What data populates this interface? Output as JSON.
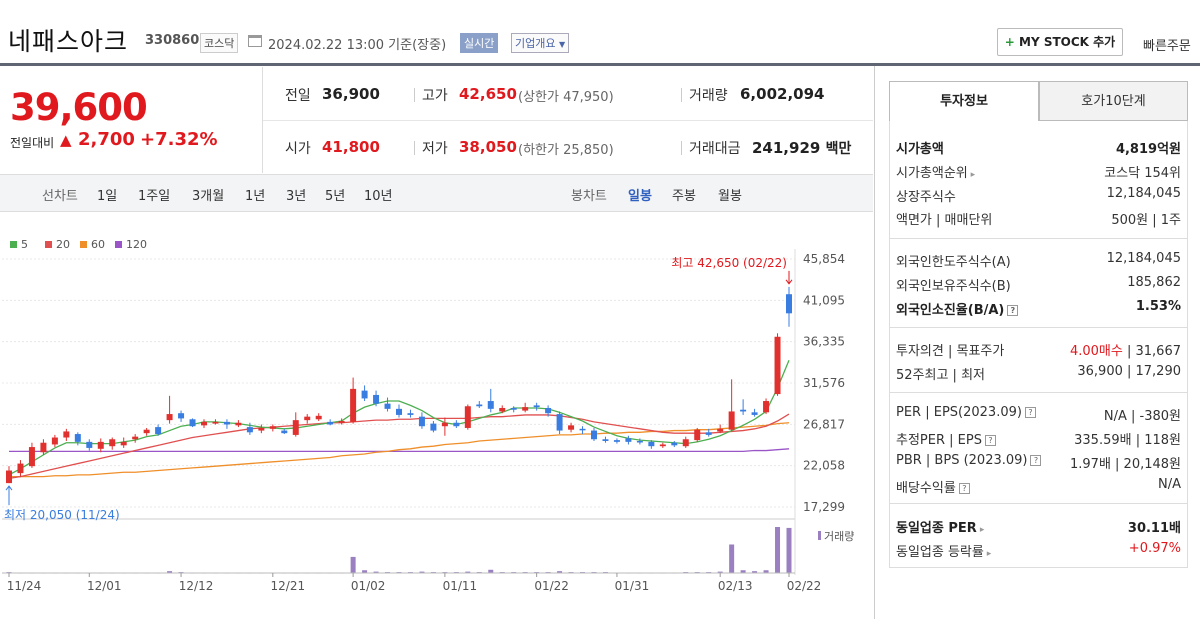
{
  "header": {
    "stock_name": "네패스아크",
    "stock_code": "330860",
    "market": "코스닥",
    "date": "2024.02.22 13:00",
    "date_suffix": "기준(장중)",
    "realtime": "실시간",
    "company_info": "기업개요",
    "my_stock": "MY STOCK 추가",
    "quick_order": "빠른주문"
  },
  "price": {
    "current": "39,600",
    "change_label": "전일대비",
    "change_amount": "2,700",
    "change_percent": "+7.32%",
    "prev_close_label": "전일",
    "prev_close": "36,900",
    "high_label": "고가",
    "high": "42,650",
    "upper_limit_label": "(상한가",
    "upper_limit": "47,950)",
    "volume_label": "거래량",
    "volume": "6,002,094",
    "open_label": "시가",
    "open": "41,800",
    "low_label": "저가",
    "low": "38,050",
    "lower_limit_label": "(하한가",
    "lower_limit": "25,850)",
    "amount_label": "거래대금",
    "amount": "241,929",
    "amount_unit": "백만"
  },
  "period_bar": {
    "candle_label": "선차트",
    "periods": [
      "1일",
      "1주일",
      "3개월",
      "1년",
      "3년",
      "5년",
      "10년"
    ],
    "bar_label": "봉차트",
    "bar_types": [
      "일봉",
      "주봉",
      "월봉"
    ]
  },
  "chart_data": {
    "type": "candlestick",
    "legend": [
      "5",
      "20",
      "60",
      "120"
    ],
    "legend_colors": [
      "#4caf50",
      "#e05050",
      "#ef8f2a",
      "#9a55c8"
    ],
    "y_ticks": [
      "45,854",
      "41,095",
      "36,335",
      "31,576",
      "26,817",
      "22,058",
      "17,299"
    ],
    "y_tick_values": [
      45854,
      41095,
      36335,
      31576,
      26817,
      22058,
      17299
    ],
    "x_ticks": [
      "11/24",
      "12/01",
      "12/12",
      "12/21",
      "01/02",
      "01/11",
      "01/22",
      "01/31",
      "02/13",
      "02/22"
    ],
    "max_annotation": "최고 42,650 (02/22)",
    "min_annotation": "최저 20,050 (11/24)",
    "volume_label": "거래량",
    "candles": [
      {
        "o": 20050,
        "c": 21500,
        "h": 22000,
        "l": 20050
      },
      {
        "o": 21200,
        "c": 22300,
        "h": 22700,
        "l": 20800
      },
      {
        "o": 22000,
        "c": 24200,
        "h": 24700,
        "l": 21800
      },
      {
        "o": 23600,
        "c": 24700,
        "h": 25100,
        "l": 23300
      },
      {
        "o": 24500,
        "c": 25300,
        "h": 25600,
        "l": 24200
      },
      {
        "o": 25300,
        "c": 26000,
        "h": 26300,
        "l": 24900
      },
      {
        "o": 25700,
        "c": 24800,
        "h": 25900,
        "l": 24400
      },
      {
        "o": 24800,
        "c": 24100,
        "h": 25100,
        "l": 23800
      },
      {
        "o": 24000,
        "c": 24800,
        "h": 25200,
        "l": 23600
      },
      {
        "o": 24300,
        "c": 25100,
        "h": 25300,
        "l": 23900
      },
      {
        "o": 24400,
        "c": 24800,
        "h": 25300,
        "l": 24100
      },
      {
        "o": 25100,
        "c": 25400,
        "h": 25700,
        "l": 24700
      },
      {
        "o": 25800,
        "c": 26200,
        "h": 26400,
        "l": 25500
      },
      {
        "o": 26500,
        "c": 25700,
        "h": 26800,
        "l": 25500
      },
      {
        "o": 27300,
        "c": 28000,
        "h": 30100,
        "l": 26900
      },
      {
        "o": 28100,
        "c": 27500,
        "h": 28400,
        "l": 27100
      },
      {
        "o": 27400,
        "c": 26600,
        "h": 27500,
        "l": 26500
      },
      {
        "o": 26700,
        "c": 27100,
        "h": 27400,
        "l": 26400
      },
      {
        "o": 26900,
        "c": 27100,
        "h": 27400,
        "l": 26800
      },
      {
        "o": 27100,
        "c": 26800,
        "h": 27400,
        "l": 26300
      },
      {
        "o": 26700,
        "c": 27000,
        "h": 27300,
        "l": 26500
      },
      {
        "o": 26500,
        "c": 25900,
        "h": 27000,
        "l": 25600
      },
      {
        "o": 26100,
        "c": 26400,
        "h": 26800,
        "l": 25800
      },
      {
        "o": 26300,
        "c": 26600,
        "h": 26800,
        "l": 26000
      },
      {
        "o": 26100,
        "c": 25800,
        "h": 26300,
        "l": 25700
      },
      {
        "o": 25600,
        "c": 27300,
        "h": 28200,
        "l": 25400
      },
      {
        "o": 27300,
        "c": 27700,
        "h": 28000,
        "l": 26900
      },
      {
        "o": 27400,
        "c": 27800,
        "h": 28100,
        "l": 27200
      },
      {
        "o": 27100,
        "c": 26800,
        "h": 27400,
        "l": 26700
      },
      {
        "o": 27000,
        "c": 27200,
        "h": 27500,
        "l": 26800
      },
      {
        "o": 27100,
        "c": 30900,
        "h": 32200,
        "l": 26900
      },
      {
        "o": 30700,
        "c": 29800,
        "h": 31300,
        "l": 29500
      },
      {
        "o": 30200,
        "c": 29200,
        "h": 30700,
        "l": 28900
      },
      {
        "o": 29200,
        "c": 28600,
        "h": 29900,
        "l": 28300
      },
      {
        "o": 28600,
        "c": 27900,
        "h": 29100,
        "l": 27600
      },
      {
        "o": 28100,
        "c": 27900,
        "h": 28500,
        "l": 27600
      },
      {
        "o": 27700,
        "c": 26600,
        "h": 28200,
        "l": 26300
      },
      {
        "o": 26900,
        "c": 26100,
        "h": 27200,
        "l": 25900
      },
      {
        "o": 26600,
        "c": 27000,
        "h": 27600,
        "l": 25500
      },
      {
        "o": 27000,
        "c": 26600,
        "h": 27300,
        "l": 26400
      },
      {
        "o": 26400,
        "c": 28900,
        "h": 29100,
        "l": 26200
      },
      {
        "o": 29100,
        "c": 28900,
        "h": 29500,
        "l": 28700
      },
      {
        "o": 29500,
        "c": 28600,
        "h": 30900,
        "l": 28200
      },
      {
        "o": 28300,
        "c": 28700,
        "h": 29000,
        "l": 28100
      },
      {
        "o": 28700,
        "c": 28500,
        "h": 28900,
        "l": 28200
      },
      {
        "o": 28400,
        "c": 28800,
        "h": 29300,
        "l": 28200
      },
      {
        "o": 29000,
        "c": 28800,
        "h": 29300,
        "l": 28400
      },
      {
        "o": 28700,
        "c": 28100,
        "h": 29000,
        "l": 27700
      },
      {
        "o": 28000,
        "c": 26100,
        "h": 28300,
        "l": 25700
      },
      {
        "o": 26200,
        "c": 26700,
        "h": 27000,
        "l": 25900
      },
      {
        "o": 26300,
        "c": 26200,
        "h": 26600,
        "l": 25700
      },
      {
        "o": 26100,
        "c": 25100,
        "h": 26400,
        "l": 24900
      },
      {
        "o": 25100,
        "c": 24900,
        "h": 25400,
        "l": 24700
      },
      {
        "o": 25000,
        "c": 24800,
        "h": 25200,
        "l": 24600
      },
      {
        "o": 25200,
        "c": 24800,
        "h": 25500,
        "l": 24500
      },
      {
        "o": 24900,
        "c": 24800,
        "h": 25200,
        "l": 24500
      },
      {
        "o": 24800,
        "c": 24300,
        "h": 25000,
        "l": 24000
      },
      {
        "o": 24300,
        "c": 24500,
        "h": 24700,
        "l": 24100
      },
      {
        "o": 24700,
        "c": 24400,
        "h": 24900,
        "l": 24200
      },
      {
        "o": 24300,
        "c": 25100,
        "h": 25400,
        "l": 24100
      },
      {
        "o": 25000,
        "c": 26200,
        "h": 26400,
        "l": 24800
      },
      {
        "o": 25900,
        "c": 25600,
        "h": 26300,
        "l": 25400
      },
      {
        "o": 26000,
        "c": 26300,
        "h": 26800,
        "l": 25800
      },
      {
        "o": 26200,
        "c": 28300,
        "h": 32000,
        "l": 26100
      },
      {
        "o": 28500,
        "c": 28300,
        "h": 29700,
        "l": 27900
      },
      {
        "o": 28200,
        "c": 27900,
        "h": 28600,
        "l": 27700
      },
      {
        "o": 28200,
        "c": 29500,
        "h": 29800,
        "l": 28000
      },
      {
        "o": 30300,
        "c": 36900,
        "h": 37300,
        "l": 30100
      },
      {
        "o": 41800,
        "c": 39600,
        "h": 42650,
        "l": 38050
      }
    ],
    "ma5": [
      21000,
      21700,
      22500,
      23300,
      24100,
      24700,
      24700,
      24600,
      24600,
      24600,
      24800,
      25000,
      25400,
      25600,
      26100,
      26600,
      26800,
      27100,
      27100,
      27000,
      26900,
      26700,
      26500,
      26400,
      26300,
      26400,
      26600,
      26800,
      27000,
      27200,
      28100,
      28800,
      29200,
      29500,
      29500,
      29000,
      28400,
      27600,
      27000,
      26800,
      27100,
      27500,
      27900,
      28200,
      28700,
      28700,
      28700,
      28600,
      28200,
      27700,
      27200,
      26500,
      26000,
      25500,
      25200,
      25000,
      24900,
      24800,
      24700,
      24600,
      24800,
      25100,
      25500,
      26100,
      26700,
      27400,
      28300,
      31000,
      34200
    ],
    "ma20": [
      20600,
      20800,
      21100,
      21400,
      21700,
      22000,
      22300,
      22600,
      22900,
      23200,
      23500,
      23800,
      24100,
      24400,
      24700,
      25000,
      25300,
      25500,
      25700,
      25900,
      26100,
      26300,
      26400,
      26500,
      26600,
      26700,
      26800,
      26900,
      27000,
      27000,
      27100,
      27200,
      27300,
      27300,
      27400,
      27400,
      27500,
      27500,
      27500,
      27500,
      27500,
      27600,
      27700,
      27700,
      27800,
      27900,
      27900,
      27900,
      27800,
      27600,
      27400,
      27100,
      26900,
      26700,
      26500,
      26300,
      26100,
      25900,
      25800,
      25800,
      25800,
      25800,
      25900,
      26000,
      26100,
      26300,
      26600,
      27200,
      28000
    ],
    "ma60": [
      20800,
      20800,
      20800,
      20800,
      20900,
      20900,
      21000,
      21000,
      21100,
      21200,
      21300,
      21300,
      21400,
      21500,
      21600,
      21700,
      21800,
      21900,
      22000,
      22100,
      22200,
      22300,
      22400,
      22500,
      22600,
      22700,
      22800,
      22900,
      23000,
      23200,
      23300,
      23400,
      23600,
      23700,
      23900,
      24000,
      24200,
      24300,
      24500,
      24600,
      24700,
      24900,
      25000,
      25100,
      25200,
      25300,
      25400,
      25500,
      25600,
      25600,
      25700,
      25700,
      25800,
      25800,
      25900,
      25900,
      26000,
      26000,
      26100,
      26100,
      26200,
      26200,
      26300,
      26400,
      26500,
      26600,
      26700,
      26900,
      27000
    ],
    "ma120": [
      23700,
      23700,
      23700,
      23700,
      23700,
      23700,
      23700,
      23700,
      23700,
      23700,
      23700,
      23700,
      23700,
      23700,
      23700,
      23700,
      23700,
      23700,
      23700,
      23700,
      23700,
      23700,
      23700,
      23700,
      23700,
      23700,
      23700,
      23700,
      23700,
      23700,
      23700,
      23700,
      23700,
      23700,
      23700,
      23700,
      23700,
      23700,
      23700,
      23700,
      23700,
      23700,
      23700,
      23700,
      23700,
      23700,
      23700,
      23700,
      23700,
      23700,
      23700,
      23700,
      23700,
      23700,
      23700,
      23700,
      23700,
      23700,
      23700,
      23700,
      23700,
      23700,
      23700,
      23700,
      23700,
      23800,
      23800,
      23900,
      24000
    ],
    "volumes": [
      0.02,
      0.01,
      0.01,
      0.01,
      0.01,
      0.01,
      0.01,
      0.01,
      0.01,
      0.01,
      0.01,
      0.01,
      0.01,
      0.01,
      0.04,
      0.02,
      0.01,
      0.01,
      0.01,
      0.01,
      0.01,
      0.01,
      0.01,
      0.01,
      0.01,
      0.01,
      0.01,
      0.01,
      0.01,
      0.01,
      0.35,
      0.06,
      0.03,
      0.02,
      0.02,
      0.02,
      0.03,
      0.02,
      0.02,
      0.02,
      0.03,
      0.02,
      0.07,
      0.02,
      0.02,
      0.02,
      0.02,
      0.02,
      0.04,
      0.02,
      0.02,
      0.02,
      0.02,
      0.01,
      0.01,
      0.01,
      0.01,
      0.01,
      0.01,
      0.02,
      0.02,
      0.02,
      0.03,
      0.62,
      0.06,
      0.04,
      0.06,
      1.0,
      0.98
    ]
  },
  "right_panel": {
    "tab_invest": "투자정보",
    "tab_orderbook": "호가10단계",
    "rows": [
      {
        "k": "시가총액",
        "v": "4,819억원",
        "bold": true
      },
      {
        "k": "시가총액순위",
        "v": "코스닥 154위"
      },
      {
        "k": "상장주식수",
        "v": "12,184,045"
      },
      {
        "k": "액면가 | 매매단위",
        "v": "500원 | 1주"
      },
      {
        "k": "외국인한도주식수(A)",
        "v": "12,184,045"
      },
      {
        "k": "외국인보유주식수(B)",
        "v": "185,862"
      },
      {
        "k": "외국인소진율(B/A)",
        "v": "1.53%",
        "bold": true
      },
      {
        "k": "투자의견 | 목표주가",
        "v1": "4.00매수",
        "v2": " | 31,667"
      },
      {
        "k": "52주최고 | 최저",
        "v": "36,900 | 17,290"
      },
      {
        "k": "PER | EPS(2023.09)",
        "v": "N/A | -380원"
      },
      {
        "k": "추정PER | EPS",
        "v": "335.59배 | 118원"
      },
      {
        "k": "PBR | BPS (2023.09)",
        "v": "1.97배 | 20,148원"
      },
      {
        "k": "배당수익률",
        "v": "N/A"
      },
      {
        "k": "동일업종 PER",
        "v": "30.11배",
        "bold": true
      },
      {
        "k": "동일업종 등락률",
        "v": "+0.97%",
        "red": true
      }
    ]
  }
}
